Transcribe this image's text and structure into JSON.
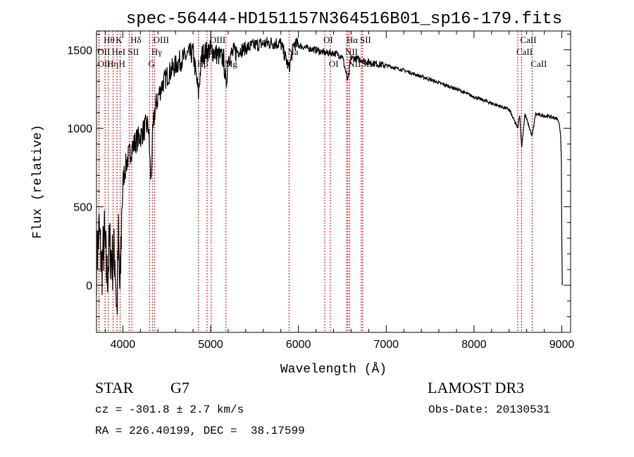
{
  "chart_data": {
    "type": "line",
    "title": "spec-56444-HD151157N364516B01_sp16-179.fits",
    "xlabel": "Wavelength (Å)",
    "ylabel": "Flux (relative)",
    "xlim": [
      3700,
      9100
    ],
    "ylim": [
      -300,
      1620
    ],
    "xticks": [
      4000,
      5000,
      6000,
      7000,
      8000,
      9000
    ],
    "yticks": [
      0,
      500,
      1000,
      1500
    ],
    "grid": false,
    "series": [
      {
        "name": "flux",
        "x": [
          3700,
          3730,
          3760,
          3790,
          3820,
          3850,
          3880,
          3910,
          3933,
          3950,
          3968,
          3990,
          4010,
          4050,
          4100,
          4150,
          4200,
          4250,
          4290,
          4305,
          4320,
          4340,
          4360,
          4400,
          4450,
          4500,
          4550,
          4600,
          4650,
          4700,
          4750,
          4800,
          4861,
          4900,
          4950,
          5000,
          5050,
          5100,
          5150,
          5175,
          5200,
          5300,
          5400,
          5500,
          5600,
          5700,
          5800,
          5893,
          5950,
          6000,
          6100,
          6200,
          6300,
          6400,
          6500,
          6563,
          6600,
          6700,
          6800,
          6900,
          7000,
          7200,
          7400,
          7600,
          7800,
          8000,
          8200,
          8400,
          8498,
          8520,
          8542,
          8580,
          8662,
          8700,
          8800,
          8900,
          8950,
          8970,
          8985,
          8995,
          9000,
          9005
        ],
        "y": [
          150,
          350,
          100,
          300,
          50,
          250,
          150,
          200,
          -200,
          300,
          -100,
          550,
          700,
          800,
          870,
          920,
          950,
          1000,
          1020,
          850,
          650,
          950,
          1100,
          1200,
          1280,
          1330,
          1370,
          1400,
          1430,
          1450,
          1470,
          1480,
          1220,
          1470,
          1490,
          1500,
          1480,
          1460,
          1440,
          1260,
          1460,
          1490,
          1510,
          1530,
          1540,
          1545,
          1540,
          1380,
          1540,
          1530,
          1510,
          1500,
          1480,
          1480,
          1460,
          1300,
          1450,
          1440,
          1420,
          1410,
          1400,
          1370,
          1330,
          1290,
          1250,
          1200,
          1160,
          1120,
          1000,
          1090,
          880,
          1090,
          950,
          1090,
          1080,
          1070,
          1060,
          1030,
          960,
          800,
          300,
          0
        ]
      }
    ],
    "lines": [
      {
        "label": "OII",
        "wave": 3727,
        "row": 2
      },
      {
        "label": "OII",
        "wave": 3729,
        "row": 3
      },
      {
        "label": "Hθ",
        "wave": 3797,
        "row": 1
      },
      {
        "label": "Hη",
        "wave": 3835,
        "row": 3
      },
      {
        "label": "HeI",
        "wave": 3889,
        "row": 2
      },
      {
        "label": "K",
        "wave": 3934,
        "row": 1
      },
      {
        "label": "H",
        "wave": 3969,
        "row": 3
      },
      {
        "label": "SII",
        "wave": 4072,
        "row": 2
      },
      {
        "label": "Hδ",
        "wave": 4102,
        "row": 1
      },
      {
        "label": "G",
        "wave": 4305,
        "row": 3
      },
      {
        "label": "Hγ",
        "wave": 4340,
        "row": 2
      },
      {
        "label": "OIII",
        "wave": 4363,
        "row": 1
      },
      {
        "label": "Hβ",
        "wave": 4861,
        "row": 3
      },
      {
        "label": "OIII",
        "wave": 4959,
        "row": 2
      },
      {
        "label": "OIII",
        "wave": 5007,
        "row": 1
      },
      {
        "label": "Mg",
        "wave": 5175,
        "row": 3
      },
      {
        "label": "Na",
        "wave": 5893,
        "row": 2
      },
      {
        "label": "OI",
        "wave": 6300,
        "row": 1
      },
      {
        "label": "OI",
        "wave": 6363,
        "row": 3
      },
      {
        "label": "NII",
        "wave": 6548,
        "row": 2
      },
      {
        "label": "Hα",
        "wave": 6563,
        "row": 1
      },
      {
        "label": "NII",
        "wave": 6583,
        "row": 3
      },
      {
        "label": "SII",
        "wave": 6716,
        "row": 1
      },
      {
        "label": "SII",
        "wave": 6731,
        "row": 3
      },
      {
        "label": "CaII",
        "wave": 8498,
        "row": 2
      },
      {
        "label": "CaII",
        "wave": 8542,
        "row": 1
      },
      {
        "label": "CaII",
        "wave": 8662,
        "row": 3
      }
    ],
    "line_color": "#cc0000"
  },
  "info": {
    "object_class": "STAR",
    "subclass": "G7",
    "survey": "LAMOST DR3",
    "cz": "cz = -301.8 ± 2.7 km/s",
    "obs_date": "Obs-Date: 20130531",
    "coords": "RA = 226.40199, DEC =  38.17599"
  }
}
